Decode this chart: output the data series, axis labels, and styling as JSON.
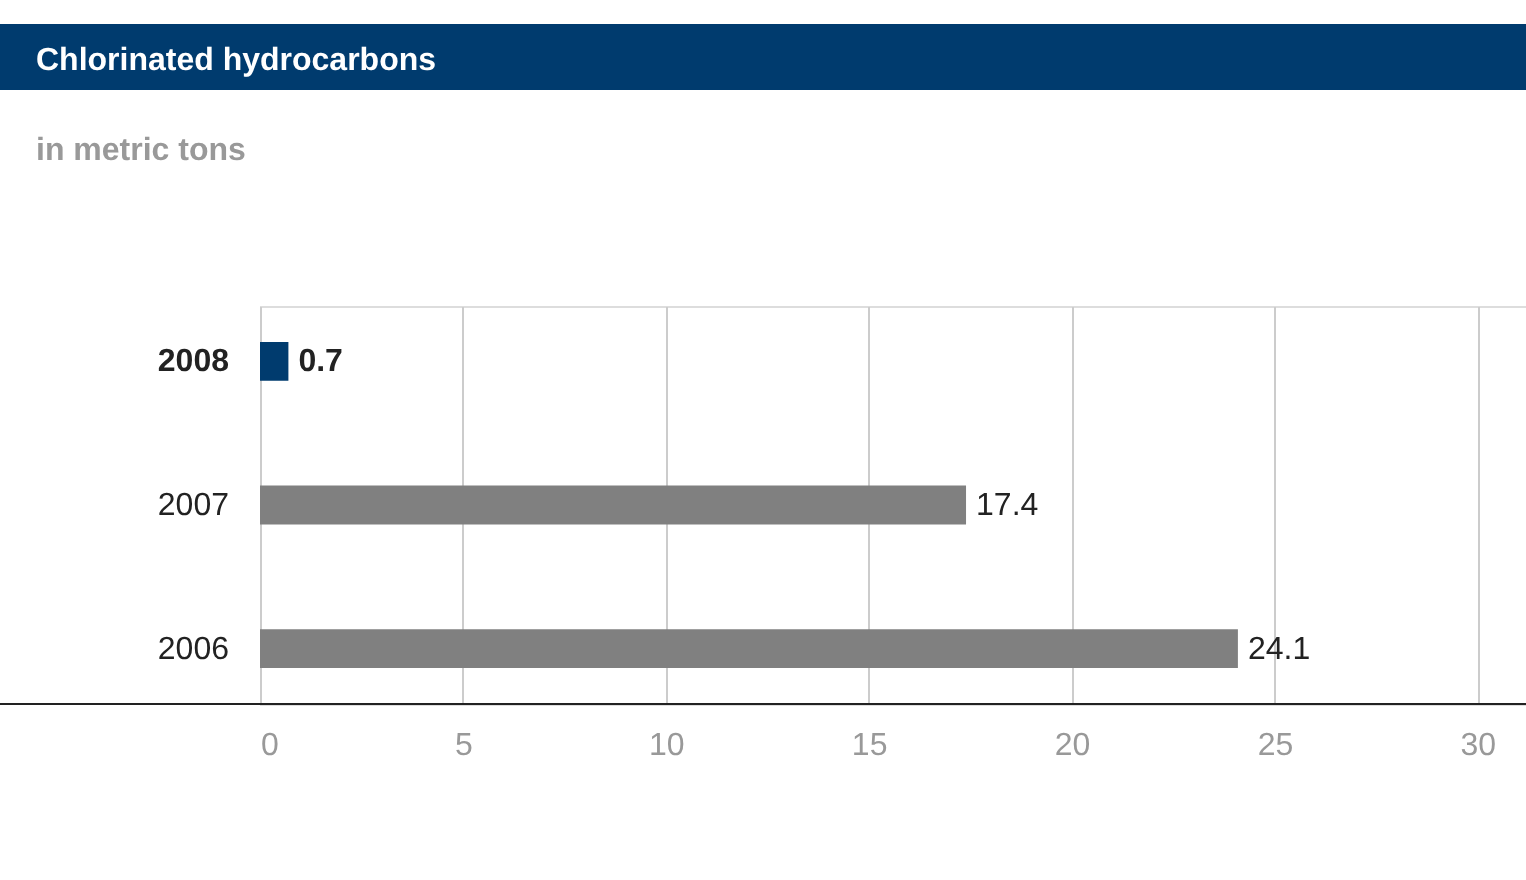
{
  "chart_data": {
    "type": "bar",
    "orientation": "horizontal",
    "title": "Chlorinated hydrocarbons",
    "subtitle": "in metric tons",
    "categories": [
      "2008",
      "2007",
      "2006"
    ],
    "values": [
      0.7,
      17.4,
      24.1
    ],
    "colors": [
      "#003b6e",
      "#808080",
      "#808080"
    ],
    "xlim": [
      0,
      31.2
    ],
    "xticks": [
      0,
      5,
      10,
      15,
      20,
      25,
      30
    ],
    "grid": "x",
    "data_labels": true
  }
}
